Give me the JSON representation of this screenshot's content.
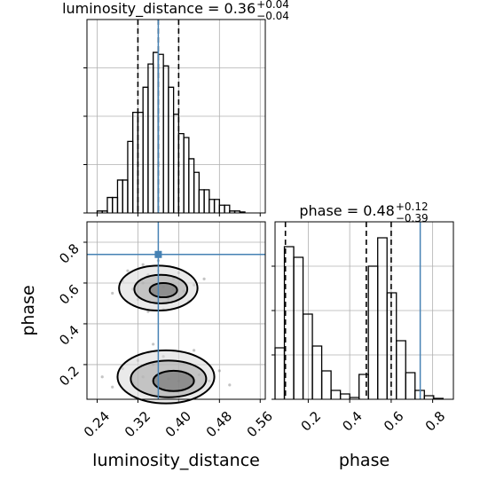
{
  "chart_data": [
    {
      "type": "histogram",
      "title": {
        "text": "luminosity_distance = 0.36",
        "upper": "+0.04",
        "lower": "−0.04"
      },
      "bins": [
        0.24,
        0.25,
        0.26,
        0.27,
        0.28,
        0.29,
        0.3,
        0.31,
        0.32,
        0.33,
        0.34,
        0.35,
        0.36,
        0.37,
        0.38,
        0.39,
        0.4,
        0.41,
        0.42,
        0.43,
        0.44,
        0.45,
        0.46,
        0.47,
        0.48,
        0.49,
        0.5,
        0.51,
        0.52,
        0.53
      ],
      "counts": [
        0.01,
        0.01,
        0.08,
        0.08,
        0.17,
        0.17,
        0.37,
        0.52,
        0.52,
        0.65,
        0.77,
        0.83,
        0.82,
        0.76,
        0.65,
        0.51,
        0.41,
        0.39,
        0.28,
        0.21,
        0.12,
        0.12,
        0.07,
        0.07,
        0.04,
        0.04,
        0.01,
        0.01,
        0.005
      ],
      "color": "#000000",
      "truth": 0.36,
      "truth_color": "#4682b4",
      "quantiles": [
        0.32,
        0.36,
        0.4
      ],
      "xlim": [
        0.22,
        0.57
      ],
      "xticks": [
        0.24,
        0.32,
        {
          "value": 0.4,
          "label": "0.40"
        },
        0.48,
        0.56
      ],
      "ylim": [
        0,
        1
      ],
      "yticks": [
        0,
        0.25,
        0.5,
        0.75
      ],
      "grid": true
    },
    {
      "type": "scatter",
      "xlabel": "luminosity_distance",
      "ylabel": "phase",
      "x": [
        0.33,
        0.35,
        0.37,
        0.39,
        0.31,
        0.36,
        0.41,
        0.34,
        0.38,
        0.29,
        0.43,
        0.36,
        0.32,
        0.4,
        0.35,
        0.27,
        0.45,
        0.37,
        0.33,
        0.39,
        0.3,
        0.42,
        0.36,
        0.34,
        0.33,
        0.36,
        0.38,
        0.4,
        0.35,
        0.42,
        0.31,
        0.37,
        0.44,
        0.29,
        0.39,
        0.46,
        0.34,
        0.41,
        0.27,
        0.48,
        0.36,
        0.32,
        0.43,
        0.38,
        0.25,
        0.5,
        0.35,
        0.4
      ],
      "y": [
        0.6,
        0.55,
        0.58,
        0.62,
        0.57,
        0.5,
        0.56,
        0.64,
        0.52,
        0.61,
        0.59,
        0.66,
        0.52,
        0.65,
        0.59,
        0.55,
        0.62,
        0.47,
        0.69,
        0.57,
        0.66,
        0.51,
        0.71,
        0.46,
        0.14,
        0.1,
        0.17,
        0.12,
        0.2,
        0.09,
        0.11,
        0.24,
        0.15,
        0.18,
        0.07,
        0.12,
        0.26,
        0.21,
        0.09,
        0.17,
        0.05,
        0.22,
        0.27,
        0.13,
        0.14,
        0.1,
        0.3,
        0.04
      ],
      "contours": [
        {
          "cx": 0.36,
          "cy": 0.575,
          "rx": 0.077,
          "ry": 0.11
        },
        {
          "cx": 0.365,
          "cy": 0.57,
          "rx": 0.052,
          "ry": 0.07
        },
        {
          "cx": 0.37,
          "cy": 0.565,
          "rx": 0.027,
          "ry": 0.035
        },
        {
          "cx": 0.375,
          "cy": 0.14,
          "rx": 0.095,
          "ry": 0.13
        },
        {
          "cx": 0.38,
          "cy": 0.13,
          "rx": 0.074,
          "ry": 0.09
        },
        {
          "cx": 0.39,
          "cy": 0.12,
          "rx": 0.04,
          "ry": 0.05
        }
      ],
      "color": "#000000",
      "truth": [
        0.36,
        0.74
      ],
      "truth_color": "#4682b4",
      "xlim": [
        0.22,
        0.57
      ],
      "xticks": [
        0.24,
        0.32,
        {
          "value": 0.4,
          "label": "0.40"
        },
        0.48,
        0.56
      ],
      "ylim": [
        0.03,
        0.9
      ],
      "yticks": [
        0.2,
        0.4,
        0.6,
        0.8
      ],
      "grid": true
    },
    {
      "type": "histogram",
      "title": {
        "text": "phase = 0.48",
        "upper": "+0.12",
        "lower": "−0.39"
      },
      "xlabel": "phase",
      "bins": [
        0.04,
        0.085,
        0.13,
        0.175,
        0.22,
        0.265,
        0.31,
        0.355,
        0.4,
        0.445,
        0.49,
        0.535,
        0.58,
        0.625,
        0.67,
        0.715,
        0.76,
        0.805,
        0.85
      ],
      "counts": [
        0.29,
        0.86,
        0.8,
        0.48,
        0.3,
        0.16,
        0.05,
        0.03,
        0.01,
        0.14,
        0.75,
        0.91,
        0.6,
        0.33,
        0.15,
        0.05,
        0.02,
        0.005
      ],
      "color": "#000000",
      "truth": 0.74,
      "truth_color": "#4682b4",
      "quantiles": [
        0.09,
        0.48,
        0.6
      ],
      "xlim": [
        0.04,
        0.9
      ],
      "xticks": [
        0.2,
        0.4,
        0.6,
        0.8
      ],
      "ylim": [
        0,
        1
      ],
      "yticks": [
        0,
        0.25,
        0.5,
        0.75
      ],
      "grid": true
    }
  ]
}
